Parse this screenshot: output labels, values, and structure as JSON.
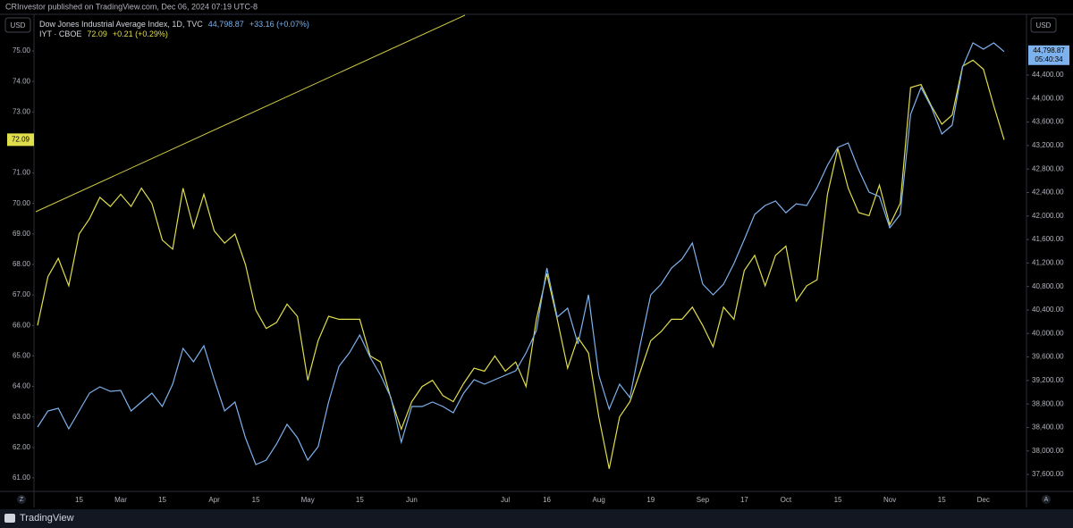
{
  "header": {
    "publisher_line": "CRInvestor published on TradingView.com, Dec 06, 2024 07:19 UTC-8"
  },
  "footer": {
    "brand": "TradingView"
  },
  "chart_data": {
    "type": "line",
    "axis_unit": "USD",
    "countdown": "05:40:34",
    "corner_buttons": [
      "Z",
      "A"
    ],
    "categories": [
      null,
      null,
      null,
      null,
      "15",
      null,
      null,
      null,
      "Mar",
      null,
      null,
      null,
      "15",
      null,
      null,
      null,
      null,
      "Apr",
      null,
      null,
      null,
      "15",
      null,
      null,
      null,
      null,
      "May",
      null,
      null,
      null,
      null,
      "15",
      null,
      null,
      null,
      null,
      "Jun",
      null,
      null,
      null,
      null,
      null,
      null,
      null,
      null,
      "Jul",
      null,
      null,
      null,
      "16",
      null,
      null,
      null,
      null,
      "Aug",
      null,
      null,
      null,
      null,
      "19",
      null,
      null,
      null,
      null,
      "Sep",
      null,
      null,
      null,
      "17",
      null,
      null,
      null,
      "Oct",
      null,
      null,
      null,
      null,
      "15",
      null,
      null,
      null,
      null,
      "Nov",
      null,
      null,
      null,
      null,
      "15",
      null,
      null,
      null,
      "Dec",
      null,
      null
    ],
    "series": [
      {
        "name": "IYT · CBOE",
        "color": "#e0de4c",
        "axis": "y",
        "last_label": "72.09",
        "change_label": "+0.21 (+0.29%)",
        "values": [
          66.0,
          67.6,
          68.2,
          67.3,
          69.0,
          69.5,
          70.2,
          69.9,
          70.3,
          69.9,
          70.5,
          70.0,
          68.8,
          68.5,
          70.5,
          69.2,
          70.3,
          69.1,
          68.7,
          69.0,
          68.0,
          66.5,
          65.9,
          66.1,
          66.7,
          66.3,
          64.2,
          65.5,
          66.3,
          66.2,
          66.2,
          66.2,
          65.0,
          64.8,
          63.6,
          62.6,
          63.5,
          64.0,
          64.2,
          63.7,
          63.5,
          64.1,
          64.6,
          64.5,
          65.0,
          64.5,
          64.8,
          64.0,
          66.2,
          67.7,
          66.2,
          64.6,
          65.6,
          65.1,
          63.0,
          61.3,
          63.0,
          63.5,
          64.5,
          65.5,
          65.8,
          66.2,
          66.2,
          66.6,
          66.0,
          65.3,
          66.6,
          66.2,
          67.8,
          68.3,
          67.3,
          68.3,
          68.6,
          66.8,
          67.3,
          67.5,
          70.3,
          71.8,
          70.5,
          69.7,
          69.6,
          70.6,
          69.3,
          70.0,
          73.8,
          73.9,
          73.2,
          72.6,
          72.9,
          74.5,
          74.7,
          74.4,
          73.2,
          72.09
        ]
      },
      {
        "name": "Dow Jones Industrial Average Index, 1D, TVC",
        "color": "#7eb2ee",
        "axis": "y2",
        "last_label": "44,798.87",
        "change_label": "+33.16 (+0.07%)",
        "values": [
          38407,
          38681,
          38727,
          38377,
          38681,
          38985,
          39092,
          39016,
          39031,
          38681,
          38833,
          38985,
          38757,
          39137,
          39746,
          39518,
          39791,
          39213,
          38681,
          38833,
          38225,
          37768,
          37844,
          38118,
          38453,
          38225,
          37844,
          38073,
          38833,
          39442,
          39670,
          39974,
          39594,
          39290,
          38909,
          38149,
          38757,
          38757,
          38833,
          38757,
          38651,
          38985,
          39213,
          39137,
          39213,
          39290,
          39366,
          39670,
          40050,
          41115,
          40278,
          40430,
          39822,
          40658,
          39290,
          38711,
          39137,
          38909,
          39822,
          40658,
          40841,
          41115,
          41267,
          41541,
          40841,
          40658,
          40841,
          41191,
          41601,
          42027,
          42179,
          42255,
          42057,
          42209,
          42179,
          42483,
          42864,
          43168,
          43244,
          42788,
          42407,
          42331,
          41799,
          42027,
          43731,
          44187,
          43852,
          43396,
          43548,
          44537,
          44948,
          44841,
          44948,
          44798.87
        ]
      }
    ],
    "ylim": [
      60.56,
      76.26
    ],
    "yticks": [
      {
        "value": 61,
        "label": "61.00"
      },
      {
        "value": 62,
        "label": "62.00"
      },
      {
        "value": 63,
        "label": "63.00"
      },
      {
        "value": 64,
        "label": "64.00"
      },
      {
        "value": 65,
        "label": "65.00"
      },
      {
        "value": 66,
        "label": "66.00"
      },
      {
        "value": 67,
        "label": "67.00"
      },
      {
        "value": 68,
        "label": "68.00"
      },
      {
        "value": 69,
        "label": "69.00"
      },
      {
        "value": 70,
        "label": "70.00"
      },
      {
        "value": 71,
        "label": "71.00"
      },
      {
        "value": 72,
        "label": "72.00"
      },
      {
        "value": 73,
        "label": "73.00"
      },
      {
        "value": 74,
        "label": "74.00"
      },
      {
        "value": 75,
        "label": "75.00"
      }
    ],
    "y2lim": [
      37312,
      45465
    ],
    "y2ticks": [
      {
        "value": 37600,
        "label": "37,600.00"
      },
      {
        "value": 38000,
        "label": "38,000.00"
      },
      {
        "value": 38400,
        "label": "38,400.00"
      },
      {
        "value": 38800,
        "label": "38,800.00"
      },
      {
        "value": 39200,
        "label": "39,200.00"
      },
      {
        "value": 39600,
        "label": "39,600.00"
      },
      {
        "value": 40000,
        "label": "40,000.00"
      },
      {
        "value": 40400,
        "label": "40,400.00"
      },
      {
        "value": 40800,
        "label": "40,800.00"
      },
      {
        "value": 41200,
        "label": "41,200.00"
      },
      {
        "value": 41600,
        "label": "41,600.00"
      },
      {
        "value": 42000,
        "label": "42,000.00"
      },
      {
        "value": 42400,
        "label": "42,400.00"
      },
      {
        "value": 42800,
        "label": "42,800.00"
      },
      {
        "value": 43200,
        "label": "43,200.00"
      },
      {
        "value": 43600,
        "label": "43,600.00"
      },
      {
        "value": 44000,
        "label": "44,000.00"
      },
      {
        "value": 44400,
        "label": "44,400.00"
      }
    ],
    "grid": false
  }
}
